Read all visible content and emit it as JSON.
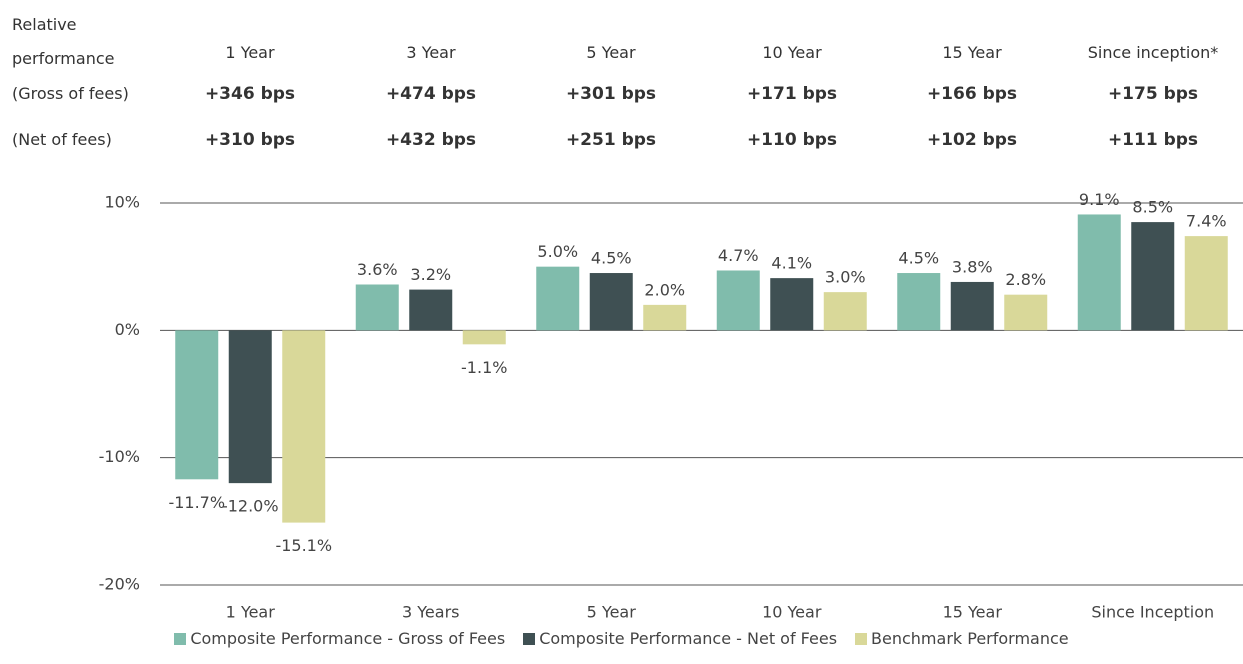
{
  "table": {
    "header": [
      "Relative performance",
      "1 Year",
      "3 Year",
      "5 Year",
      "10 Year",
      "15 Year",
      "Since inception*"
    ],
    "rows": [
      [
        "(Gross of fees)",
        "+346 bps",
        "+474 bps",
        "+301 bps",
        "+171 bps",
        "+166 bps",
        "+175 bps"
      ],
      [
        "(Net of fees)",
        "+310 bps",
        "+432 bps",
        "+251 bps",
        "+110 bps",
        "+102 bps",
        "+111 bps"
      ]
    ]
  },
  "chart_data": {
    "type": "bar",
    "categories": [
      "1 Year",
      "3 Years",
      "5 Year",
      "10 Year",
      "15 Year",
      "Since Inception"
    ],
    "series": [
      {
        "name": "Composite Performance - Gross of Fees",
        "color": "#80bcac",
        "values": [
          -11.7,
          3.6,
          5.0,
          4.7,
          4.5,
          9.1
        ],
        "value_labels": [
          "-11.7%",
          "3.6%",
          "5.0%",
          "4.7%",
          "4.5%",
          "9.1%"
        ]
      },
      {
        "name": "Composite Performance - Net of Fees",
        "color": "#3f5053",
        "values": [
          -12.0,
          3.2,
          4.5,
          4.1,
          3.8,
          8.5
        ],
        "value_labels": [
          "-12.0%",
          "3.2%",
          "4.5%",
          "4.1%",
          "3.8%",
          "8.5%"
        ]
      },
      {
        "name": "Benchmark Performance",
        "color": "#d9d899",
        "values": [
          -15.1,
          -1.1,
          2.0,
          3.0,
          2.8,
          7.4
        ],
        "value_labels": [
          "-15.1%",
          "-1.1%",
          "2.0%",
          "3.0%",
          "2.8%",
          "7.4%"
        ]
      }
    ],
    "ylim": [
      -20,
      10
    ],
    "yticks": [
      {
        "value": -20,
        "label": "-20%"
      },
      {
        "value": -10,
        "label": "-10%"
      },
      {
        "value": 0,
        "label": "0%"
      },
      {
        "value": 10,
        "label": "10%"
      }
    ],
    "grid": true
  }
}
